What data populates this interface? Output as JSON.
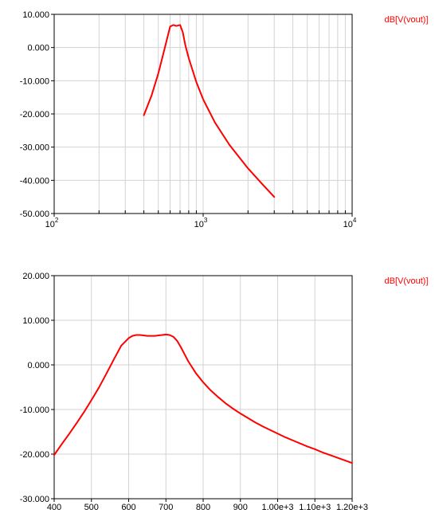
{
  "chart_data": [
    {
      "type": "line",
      "title": "",
      "xlabel": "",
      "ylabel": "",
      "xscale": "log",
      "xlim": [
        100,
        10000
      ],
      "ylim": [
        -50,
        10
      ],
      "grid": true,
      "legend_placement": "top-right, outside plot",
      "x_tick_labels": [
        {
          "base": "10",
          "exp": "2"
        },
        {
          "base": "10",
          "exp": "3"
        },
        {
          "base": "10",
          "exp": "4"
        }
      ],
      "y_tick_labels": [
        "10.000",
        "0.000",
        "-10.000",
        "-20.000",
        "-30.000",
        "-40.000",
        "-50.000"
      ],
      "series": [
        {
          "name": "dB[V(vout)]",
          "color": "#ff0000",
          "x": [
            400,
            450,
            500,
            550,
            600,
            630,
            660,
            700,
            730,
            760,
            800,
            900,
            1000,
            1200,
            1500,
            2000,
            2500,
            3000
          ],
          "y": [
            -20.4,
            -14.5,
            -7.8,
            -0.5,
            6.3,
            6.8,
            6.5,
            6.8,
            4.6,
            0.6,
            -3.2,
            -10.4,
            -15.6,
            -22.6,
            -29.3,
            -36.4,
            -41.2,
            -45.0
          ]
        }
      ]
    },
    {
      "type": "line",
      "title": "",
      "xlabel": "",
      "ylabel": "",
      "xscale": "linear",
      "xlim": [
        400,
        1200
      ],
      "ylim": [
        -30,
        20
      ],
      "grid": true,
      "legend_placement": "top-right, outside plot",
      "x_tick_labels": [
        "400",
        "500",
        "600",
        "700",
        "800",
        "900",
        "1.00e+3",
        "1.10e+3",
        "1.20e+3"
      ],
      "y_tick_labels": [
        "20.000",
        "10.000",
        "0.000",
        "-10.000",
        "-20.000",
        "-30.000"
      ],
      "series": [
        {
          "name": "dB[V(vout)]",
          "color": "#ff0000",
          "x": [
            400,
            420,
            440,
            460,
            480,
            500,
            520,
            540,
            560,
            580,
            600,
            610,
            620,
            630,
            640,
            650,
            660,
            670,
            680,
            690,
            700,
            710,
            720,
            730,
            740,
            750,
            760,
            780,
            800,
            820,
            840,
            860,
            880,
            900,
            920,
            940,
            960,
            980,
            1000,
            1020,
            1040,
            1060,
            1080,
            1100,
            1120,
            1140,
            1160,
            1180,
            1200
          ],
          "y": [
            -20.2,
            -17.8,
            -15.5,
            -13.1,
            -10.6,
            -7.9,
            -5.1,
            -2.0,
            1.2,
            4.3,
            6.0,
            6.5,
            6.7,
            6.7,
            6.6,
            6.5,
            6.5,
            6.5,
            6.6,
            6.7,
            6.8,
            6.7,
            6.3,
            5.4,
            4.0,
            2.4,
            0.8,
            -1.8,
            -3.9,
            -5.7,
            -7.2,
            -8.6,
            -9.8,
            -10.9,
            -11.9,
            -12.9,
            -13.8,
            -14.6,
            -15.4,
            -16.2,
            -16.9,
            -17.6,
            -18.3,
            -18.9,
            -19.6,
            -20.2,
            -20.8,
            -21.4,
            -22.0
          ]
        }
      ]
    }
  ]
}
